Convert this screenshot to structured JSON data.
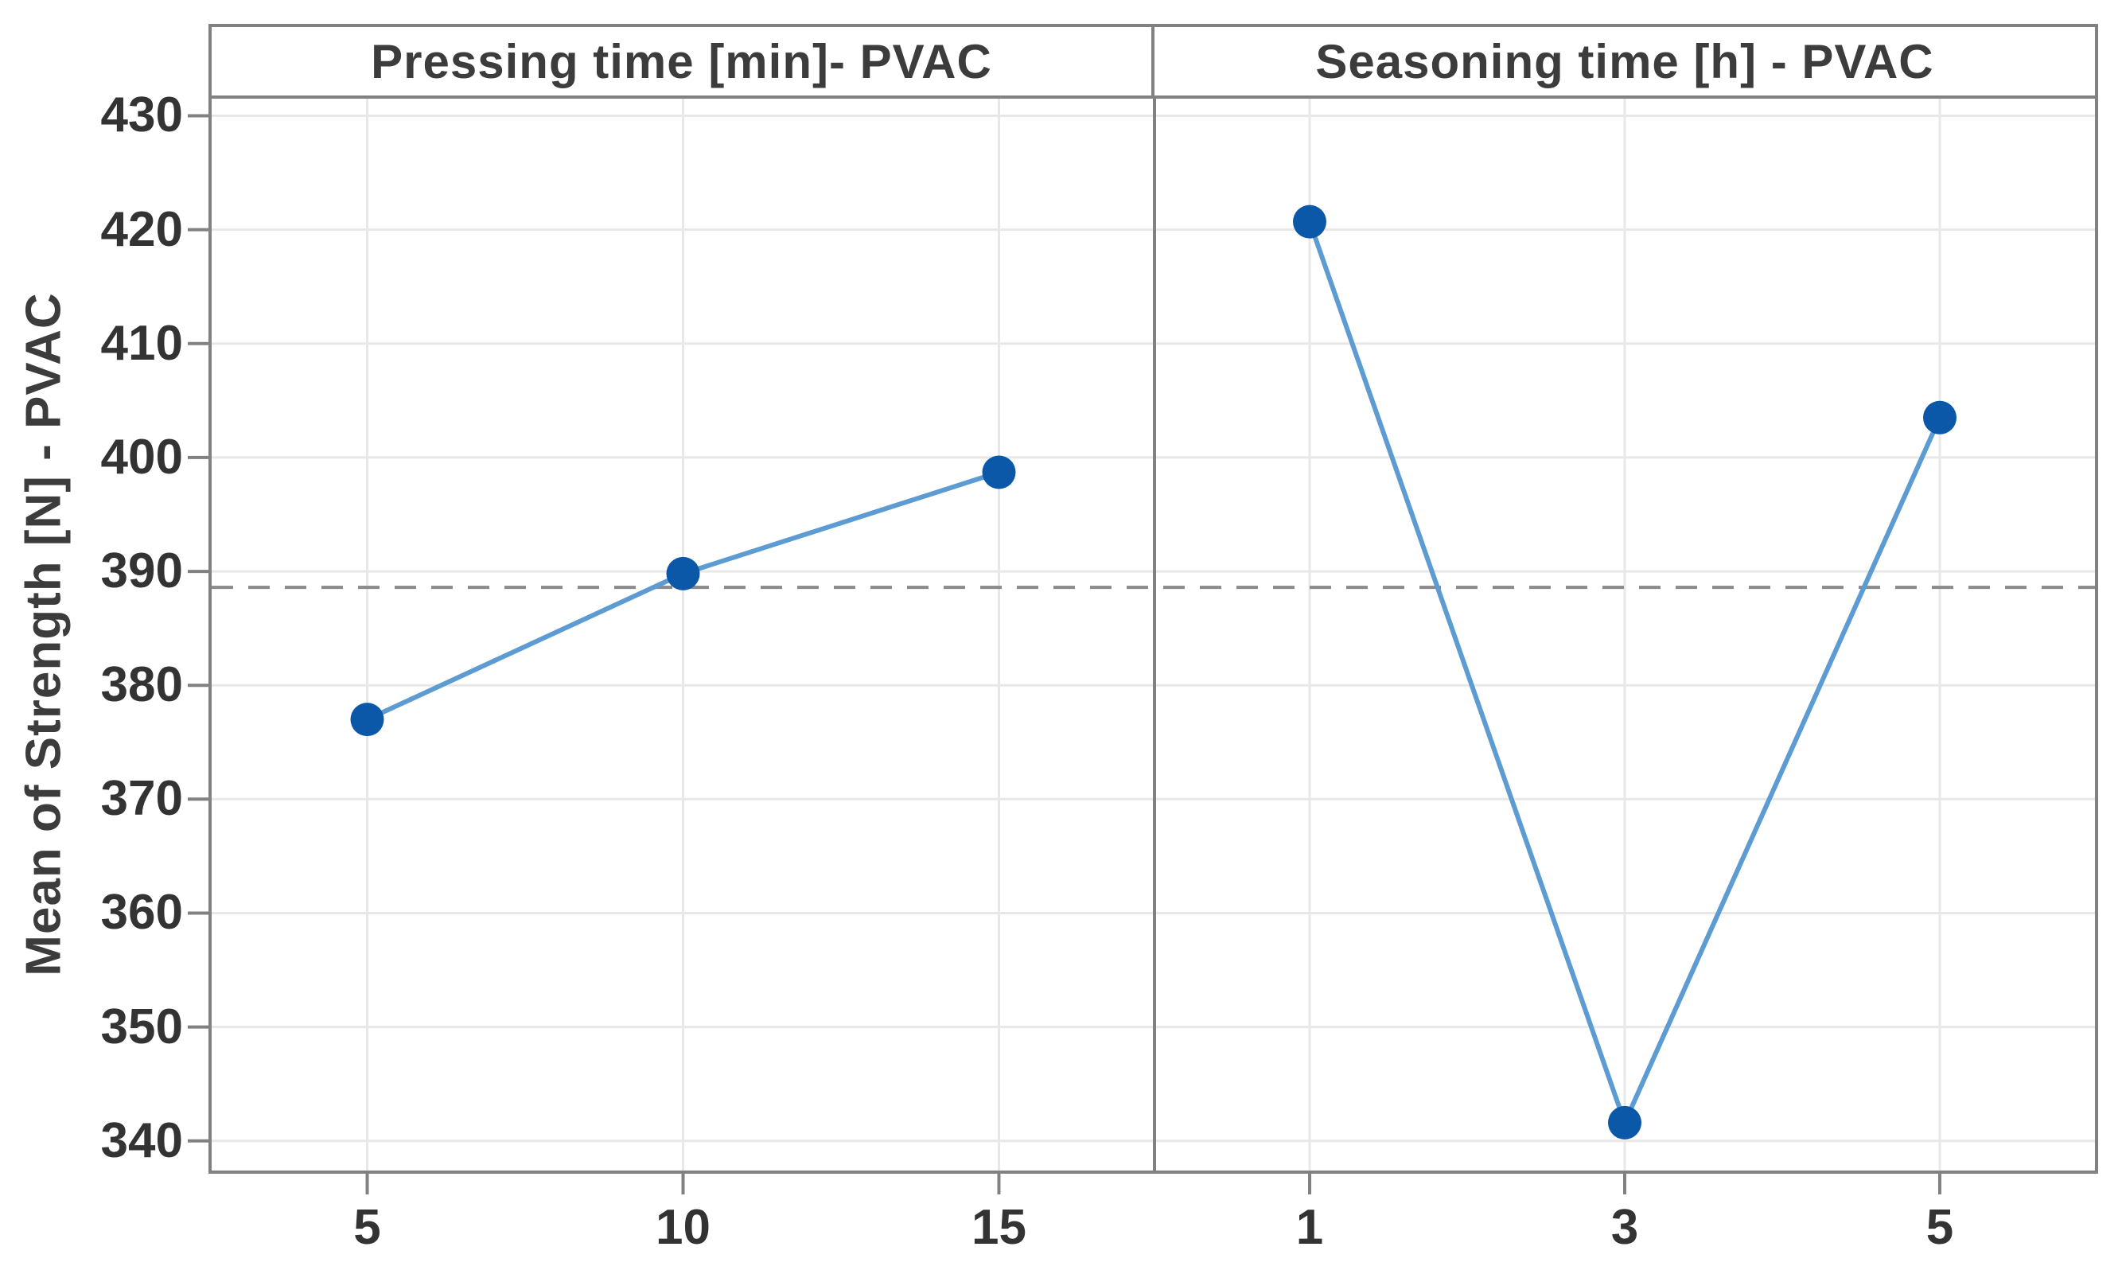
{
  "chart_data": {
    "type": "line",
    "title": "",
    "ylabel": "Mean of Strength [N] - PVAC",
    "ylim": [
      337.4,
      431.5
    ],
    "yticks": [
      430,
      420,
      410,
      400,
      390,
      380,
      370,
      360,
      350,
      340
    ],
    "grid": true,
    "reference_line_mean": 388.6,
    "legend": "none",
    "panels": [
      {
        "title": "Pressing time [min]- PVAC",
        "categories": [
          "5",
          "10",
          "15"
        ],
        "values": [
          377.0,
          389.8,
          398.7
        ]
      },
      {
        "title": "Seasoning time [h] - PVAC",
        "categories": [
          "1",
          "3",
          "5"
        ],
        "values": [
          420.7,
          341.6,
          403.5
        ]
      }
    ],
    "colors": {
      "marker": "#0c58a8",
      "line": "#5d9bd3",
      "reference_line": "#8a8a8a",
      "gridline": "#e8e8e8",
      "frame": "#818181",
      "text": "#3c3c3c"
    }
  }
}
